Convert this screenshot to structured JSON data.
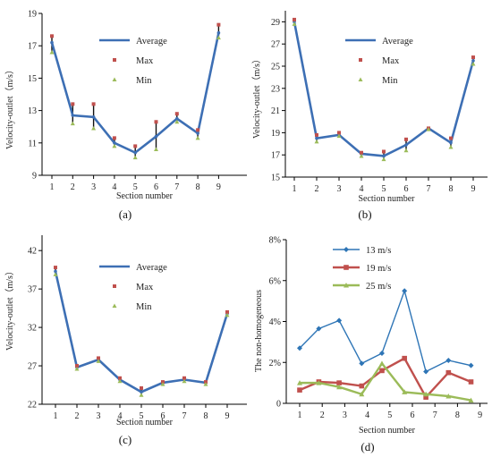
{
  "chart_data": [
    {
      "type": "line",
      "panel_label": "(a)",
      "xlabel": "Section number",
      "ylabel": "Velocity-outlet（m/s）",
      "categories": [
        "1",
        "2",
        "3",
        "4",
        "5",
        "6",
        "7",
        "8",
        "9"
      ],
      "ylim": [
        9,
        19
      ],
      "yticks": [
        "9",
        "11",
        "13",
        "15",
        "17",
        "19"
      ],
      "legend_position": "top-right",
      "series": [
        {
          "name": "Average",
          "color": "#3d6fb4",
          "values": [
            17.2,
            12.7,
            12.6,
            11.0,
            10.4,
            11.4,
            12.5,
            11.6,
            17.8
          ]
        },
        {
          "name": "Max",
          "color": "#c0504d",
          "values": [
            17.6,
            13.4,
            13.4,
            11.3,
            10.8,
            12.3,
            12.8,
            11.8,
            18.3
          ]
        },
        {
          "name": "Min",
          "color": "#9bbb59",
          "values": [
            16.6,
            12.2,
            11.9,
            10.8,
            10.1,
            10.6,
            12.3,
            11.3,
            17.5
          ]
        }
      ]
    },
    {
      "type": "line",
      "panel_label": "(b)",
      "xlabel": "Section number",
      "ylabel": "Velocity-outlet（m/s）",
      "categories": [
        "1",
        "2",
        "3",
        "4",
        "5",
        "6",
        "7",
        "8",
        "9"
      ],
      "ylim": [
        15,
        30
      ],
      "yticks": [
        "15",
        "17",
        "19",
        "21",
        "23",
        "25",
        "27",
        "29"
      ],
      "legend_position": "top-right",
      "series": [
        {
          "name": "Average",
          "color": "#3d6fb4",
          "values": [
            29.0,
            18.5,
            18.8,
            17.1,
            16.9,
            17.9,
            19.4,
            18.1,
            25.5
          ]
        },
        {
          "name": "Max",
          "color": "#c0504d",
          "values": [
            29.2,
            18.8,
            19.0,
            17.2,
            17.3,
            18.4,
            19.4,
            18.5,
            25.8
          ]
        },
        {
          "name": "Min",
          "color": "#9bbb59",
          "values": [
            28.8,
            18.2,
            18.7,
            16.9,
            16.6,
            17.4,
            19.3,
            17.7,
            25.2
          ]
        }
      ]
    },
    {
      "type": "line",
      "panel_label": "(c)",
      "xlabel": "Section number",
      "ylabel": "Velocity-outlet（m/s）",
      "categories": [
        "1",
        "2",
        "3",
        "4",
        "5",
        "6",
        "7",
        "8",
        "9"
      ],
      "ylim": [
        22,
        44
      ],
      "yticks": [
        "22",
        "27",
        "32",
        "37",
        "42"
      ],
      "legend_position": "top-right",
      "series": [
        {
          "name": "Average",
          "color": "#3d6fb4",
          "values": [
            39.3,
            26.8,
            27.8,
            25.2,
            23.6,
            24.8,
            25.2,
            24.8,
            33.8
          ]
        },
        {
          "name": "Max",
          "color": "#c0504d",
          "values": [
            39.8,
            27.0,
            28.0,
            25.4,
            24.1,
            24.9,
            25.4,
            24.9,
            34.0
          ]
        },
        {
          "name": "Min",
          "color": "#9bbb59",
          "values": [
            38.9,
            26.6,
            27.6,
            25.0,
            23.2,
            24.6,
            25.0,
            24.6,
            33.6
          ]
        }
      ]
    },
    {
      "type": "line",
      "panel_label": "(d)",
      "xlabel": "Section number",
      "ylabel": "The non-homogeneous",
      "categories": [
        "1",
        "2",
        "3",
        "4",
        "5",
        "6",
        "7",
        "8",
        "9"
      ],
      "ylim": [
        0,
        8
      ],
      "yticks": [
        "0",
        "2%",
        "4%",
        "6%",
        "8%"
      ],
      "legend_position": "top-left",
      "series": [
        {
          "name": "13 m/s",
          "color": "#2e75b6",
          "x": [
            1.0,
            1.85,
            2.75,
            3.75,
            4.65,
            5.65,
            6.6,
            7.6,
            8.6
          ],
          "values": [
            2.7,
            3.65,
            4.05,
            1.95,
            2.45,
            5.5,
            1.55,
            2.1,
            1.85
          ]
        },
        {
          "name": "19 m/s",
          "color": "#c0504d",
          "x": [
            1.0,
            1.85,
            2.75,
            3.75,
            4.65,
            5.65,
            6.6,
            7.6,
            8.6
          ],
          "values": [
            0.65,
            1.05,
            1.0,
            0.85,
            1.6,
            2.2,
            0.3,
            1.5,
            1.05
          ]
        },
        {
          "name": "25 m/s",
          "color": "#9bbb59",
          "x": [
            1.0,
            1.85,
            2.75,
            3.75,
            4.65,
            5.65,
            6.6,
            7.6,
            8.6
          ],
          "values": [
            1.0,
            1.0,
            0.8,
            0.45,
            1.95,
            0.55,
            0.45,
            0.35,
            0.15
          ]
        }
      ]
    }
  ]
}
